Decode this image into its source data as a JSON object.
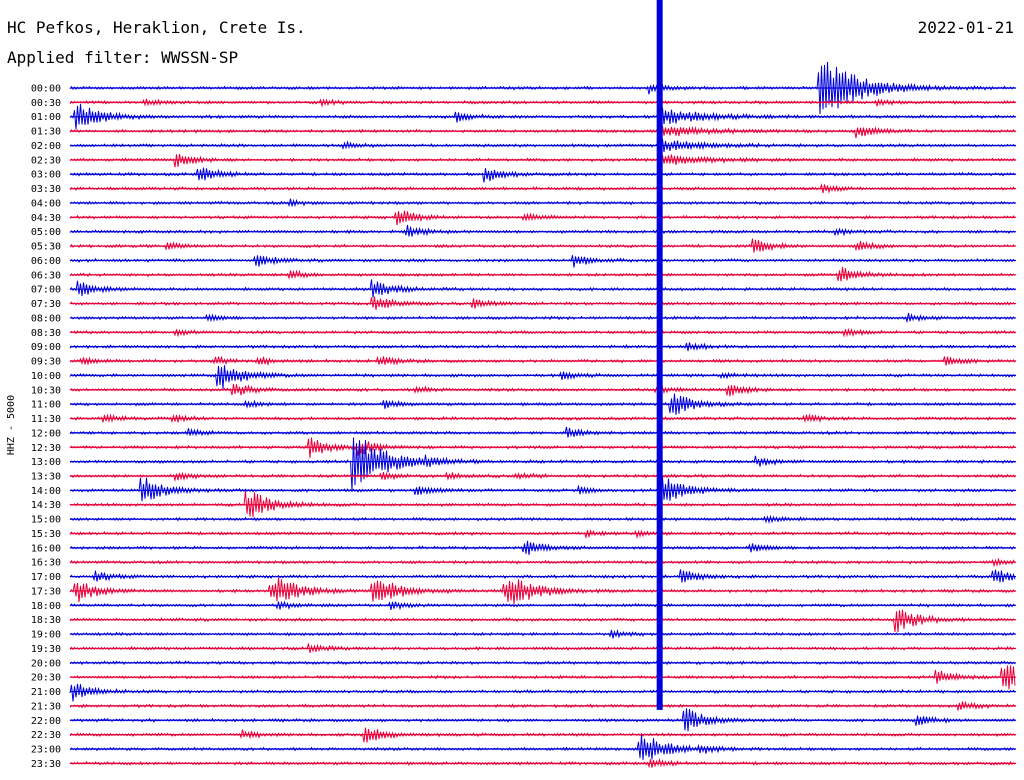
{
  "header": {
    "station": "HC Pefkos, Heraklion, Crete Is.",
    "date": "2022-01-21",
    "filter": "Applied filter: WWSSN-SP"
  },
  "chart_data": {
    "type": "line",
    "title": "HC Pefkos, Heraklion, Crete Is.",
    "subtitle": "Applied filter: WWSSN-SP",
    "date": "2022-01-21",
    "ylabel": "HHZ - 5000",
    "xlabel": "",
    "grid": false,
    "colors": {
      "odd_hour_trace": "#0000dd",
      "half_hour_trace": "#e8003a"
    },
    "row_labels": [
      "00:00",
      "00:30",
      "01:00",
      "01:30",
      "02:00",
      "02:30",
      "03:00",
      "03:30",
      "04:00",
      "04:30",
      "05:00",
      "05:30",
      "06:00",
      "06:30",
      "07:00",
      "07:30",
      "08:00",
      "08:30",
      "09:00",
      "09:30",
      "10:00",
      "10:30",
      "11:00",
      "11:30",
      "12:00",
      "12:30",
      "13:00",
      "13:30",
      "14:00",
      "14:30",
      "15:00",
      "15:30",
      "16:00",
      "16:30",
      "17:00",
      "17:30",
      "18:00",
      "18:30",
      "19:00",
      "19:30",
      "20:00",
      "20:30",
      "21:00",
      "21:30",
      "22:00",
      "22:30",
      "23:00",
      "23:30"
    ],
    "events": [
      {
        "row": 0,
        "minute": 18.4,
        "amp": 0.9
      },
      {
        "row": 0,
        "minute": 23.8,
        "amp": 6,
        "clip": true
      },
      {
        "row": 1,
        "minute": 2.4,
        "amp": 0.5
      },
      {
        "row": 1,
        "minute": 8.0,
        "amp": 0.4
      },
      {
        "row": 1,
        "minute": 25.6,
        "amp": 0.4
      },
      {
        "row": 2,
        "minute": 0.2,
        "amp": 2.5
      },
      {
        "row": 2,
        "minute": 12.3,
        "amp": 0.8
      },
      {
        "row": 3,
        "minute": 25.0,
        "amp": 1.0
      },
      {
        "row": 4,
        "minute": 8.7,
        "amp": 0.5
      },
      {
        "row": 5,
        "minute": 3.4,
        "amp": 1.2
      },
      {
        "row": 6,
        "minute": 4.1,
        "amp": 1.4
      },
      {
        "row": 6,
        "minute": 13.2,
        "amp": 1.2
      },
      {
        "row": 7,
        "minute": 23.9,
        "amp": 0.6
      },
      {
        "row": 8,
        "minute": 7.0,
        "amp": 0.5
      },
      {
        "row": 9,
        "minute": 10.4,
        "amp": 1.4
      },
      {
        "row": 9,
        "minute": 14.4,
        "amp": 0.6
      },
      {
        "row": 10,
        "minute": 10.7,
        "amp": 0.9
      },
      {
        "row": 10,
        "minute": 24.3,
        "amp": 0.5
      },
      {
        "row": 11,
        "minute": 3.1,
        "amp": 0.5
      },
      {
        "row": 11,
        "minute": 21.7,
        "amp": 1.2
      },
      {
        "row": 11,
        "minute": 25.0,
        "amp": 0.8
      },
      {
        "row": 12,
        "minute": 5.9,
        "amp": 1.1
      },
      {
        "row": 12,
        "minute": 16.0,
        "amp": 1.0
      },
      {
        "row": 13,
        "minute": 7.0,
        "amp": 0.7
      },
      {
        "row": 13,
        "minute": 24.4,
        "amp": 1.4
      },
      {
        "row": 14,
        "minute": 0.3,
        "amp": 1.3
      },
      {
        "row": 14,
        "minute": 9.6,
        "amp": 1.6
      },
      {
        "row": 15,
        "minute": 9.6,
        "amp": 1.4
      },
      {
        "row": 15,
        "minute": 12.8,
        "amp": 0.8
      },
      {
        "row": 16,
        "minute": 4.4,
        "amp": 0.5
      },
      {
        "row": 16,
        "minute": 26.6,
        "amp": 0.6
      },
      {
        "row": 17,
        "minute": 3.4,
        "amp": 0.4
      },
      {
        "row": 17,
        "minute": 24.6,
        "amp": 0.6
      },
      {
        "row": 18,
        "minute": 19.6,
        "amp": 0.6
      },
      {
        "row": 19,
        "minute": 0.4,
        "amp": 0.5
      },
      {
        "row": 19,
        "minute": 4.6,
        "amp": 0.6
      },
      {
        "row": 19,
        "minute": 6.0,
        "amp": 0.6
      },
      {
        "row": 19,
        "minute": 9.8,
        "amp": 0.8
      },
      {
        "row": 19,
        "minute": 27.8,
        "amp": 0.8
      },
      {
        "row": 20,
        "minute": 4.7,
        "amp": 2.6
      },
      {
        "row": 20,
        "minute": 15.6,
        "amp": 0.6
      },
      {
        "row": 20,
        "minute": 20.7,
        "amp": 0.5
      },
      {
        "row": 21,
        "minute": 5.2,
        "amp": 1.2
      },
      {
        "row": 21,
        "minute": 11.0,
        "amp": 0.5
      },
      {
        "row": 21,
        "minute": 18.6,
        "amp": 0.5
      },
      {
        "row": 21,
        "minute": 20.9,
        "amp": 1.1
      },
      {
        "row": 22,
        "minute": 5.6,
        "amp": 0.5
      },
      {
        "row": 22,
        "minute": 10.0,
        "amp": 0.6
      },
      {
        "row": 22,
        "minute": 19.1,
        "amp": 2.0
      },
      {
        "row": 23,
        "minute": 1.1,
        "amp": 0.6
      },
      {
        "row": 23,
        "minute": 3.3,
        "amp": 0.5
      },
      {
        "row": 23,
        "minute": 23.3,
        "amp": 0.7
      },
      {
        "row": 24,
        "minute": 3.8,
        "amp": 0.6
      },
      {
        "row": 24,
        "minute": 15.8,
        "amp": 0.9
      },
      {
        "row": 25,
        "minute": 7.6,
        "amp": 1.7
      },
      {
        "row": 25,
        "minute": 9.2,
        "amp": 1.2
      },
      {
        "row": 26,
        "minute": 9.0,
        "amp": 5.0,
        "clip": true
      },
      {
        "row": 26,
        "minute": 11.3,
        "amp": 0.6
      },
      {
        "row": 26,
        "minute": 21.8,
        "amp": 0.8
      },
      {
        "row": 27,
        "minute": 3.4,
        "amp": 0.6
      },
      {
        "row": 27,
        "minute": 9.9,
        "amp": 0.6
      },
      {
        "row": 27,
        "minute": 12.0,
        "amp": 0.5
      },
      {
        "row": 27,
        "minute": 14.2,
        "amp": 0.5
      },
      {
        "row": 28,
        "minute": 2.3,
        "amp": 2.5
      },
      {
        "row": 28,
        "minute": 11.0,
        "amp": 0.9
      },
      {
        "row": 28,
        "minute": 16.2,
        "amp": 0.6
      },
      {
        "row": 28,
        "minute": 18.8,
        "amp": 2.5
      },
      {
        "row": 29,
        "minute": 5.6,
        "amp": 2.8
      },
      {
        "row": 30,
        "minute": 22.1,
        "amp": 0.5
      },
      {
        "row": 31,
        "minute": 16.4,
        "amp": 0.5
      },
      {
        "row": 31,
        "minute": 18.0,
        "amp": 0.4
      },
      {
        "row": 32,
        "minute": 14.4,
        "amp": 1.4
      },
      {
        "row": 32,
        "minute": 21.6,
        "amp": 0.8
      },
      {
        "row": 33,
        "minute": 29.3,
        "amp": 0.5
      },
      {
        "row": 34,
        "minute": 0.8,
        "amp": 0.9
      },
      {
        "row": 34,
        "minute": 19.4,
        "amp": 1.2
      },
      {
        "row": 34,
        "minute": 29.3,
        "amp": 1.3
      },
      {
        "row": 35,
        "minute": 0.2,
        "amp": 2.0
      },
      {
        "row": 35,
        "minute": 6.4,
        "amp": 3.0
      },
      {
        "row": 35,
        "minute": 9.6,
        "amp": 3.0
      },
      {
        "row": 35,
        "minute": 13.8,
        "amp": 3.5
      },
      {
        "row": 36,
        "minute": 6.6,
        "amp": 0.7
      },
      {
        "row": 36,
        "minute": 10.2,
        "amp": 0.6
      },
      {
        "row": 37,
        "minute": 26.2,
        "amp": 2.2
      },
      {
        "row": 38,
        "minute": 17.2,
        "amp": 0.6
      },
      {
        "row": 39,
        "minute": 7.6,
        "amp": 0.7
      },
      {
        "row": 41,
        "minute": 27.5,
        "amp": 1.2
      },
      {
        "row": 41,
        "minute": 29.6,
        "amp": 3.0
      },
      {
        "row": 42,
        "minute": 0.1,
        "amp": 1.6
      },
      {
        "row": 43,
        "minute": 28.2,
        "amp": 0.8
      },
      {
        "row": 44,
        "minute": 19.5,
        "amp": 2.2
      },
      {
        "row": 44,
        "minute": 26.9,
        "amp": 0.8
      },
      {
        "row": 45,
        "minute": 5.5,
        "amp": 0.6
      },
      {
        "row": 45,
        "minute": 9.4,
        "amp": 1.5
      },
      {
        "row": 46,
        "minute": 18.1,
        "amp": 3.0
      },
      {
        "row": 46,
        "minute": 20.0,
        "amp": 0.7
      },
      {
        "row": 47,
        "minute": 18.4,
        "amp": 0.8
      }
    ],
    "major_event": {
      "row_start": 0,
      "row_end": 43,
      "minute": 18.7,
      "coda_rows": [
        2,
        3,
        4,
        5
      ]
    }
  }
}
